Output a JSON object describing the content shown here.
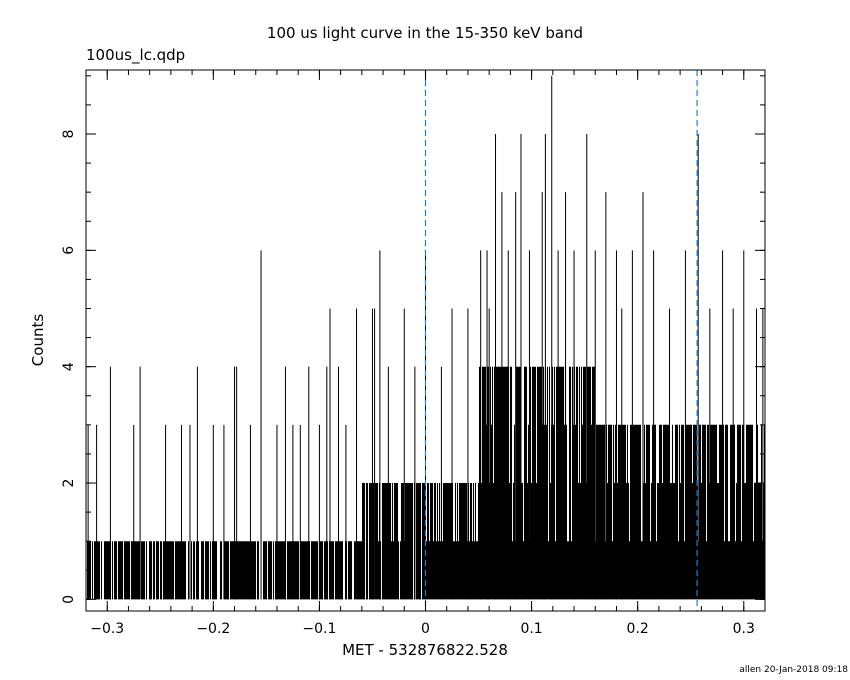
{
  "chart_data": {
    "type": "bar",
    "title": "100 us light curve in the 15-350 keV band",
    "subtitle": "100us_lc.qdp",
    "xlabel": "MET - 532876822.528",
    "ylabel": "Counts",
    "xlim": [
      -0.32,
      0.32
    ],
    "ylim": [
      -0.2,
      9.1
    ],
    "xticks": [
      -0.3,
      -0.2,
      -0.1,
      0,
      0.1,
      0.2,
      0.3
    ],
    "xtick_labels": [
      "−0.3",
      "−0.2",
      "−0.1",
      "0",
      "0.1",
      "0.2",
      "0.3"
    ],
    "yticks": [
      0,
      2,
      4,
      6,
      8
    ],
    "ytick_labels": [
      "0",
      "2",
      "4",
      "6",
      "8"
    ],
    "bin_width": 0.0001,
    "vertical_markers": [
      0,
      0.256
    ],
    "marker_color": "#1f7fd0",
    "bar_color": "#000000",
    "segments": [
      {
        "x_start": -0.32,
        "x_end": -0.06,
        "typical_min": 0,
        "typical_max": 1
      },
      {
        "x_start": -0.06,
        "x_end": 0.0,
        "typical_min": 0,
        "typical_max": 2
      },
      {
        "x_start": 0.0,
        "x_end": 0.05,
        "typical_min": 1,
        "typical_max": 2
      },
      {
        "x_start": 0.05,
        "x_end": 0.16,
        "typical_min": 1,
        "typical_max": 4
      },
      {
        "x_start": 0.16,
        "x_end": 0.32,
        "typical_min": 1,
        "typical_max": 3
      }
    ],
    "spikes": [
      {
        "x": -0.318,
        "y": 3
      },
      {
        "x": -0.31,
        "y": 3
      },
      {
        "x": -0.297,
        "y": 4
      },
      {
        "x": -0.275,
        "y": 3
      },
      {
        "x": -0.269,
        "y": 4
      },
      {
        "x": -0.245,
        "y": 3
      },
      {
        "x": -0.23,
        "y": 3
      },
      {
        "x": -0.222,
        "y": 3
      },
      {
        "x": -0.215,
        "y": 4
      },
      {
        "x": -0.2,
        "y": 3
      },
      {
        "x": -0.19,
        "y": 3
      },
      {
        "x": -0.18,
        "y": 4
      },
      {
        "x": -0.178,
        "y": 4
      },
      {
        "x": -0.165,
        "y": 3
      },
      {
        "x": -0.155,
        "y": 6
      },
      {
        "x": -0.14,
        "y": 3
      },
      {
        "x": -0.132,
        "y": 4
      },
      {
        "x": -0.125,
        "y": 3
      },
      {
        "x": -0.118,
        "y": 3
      },
      {
        "x": -0.11,
        "y": 4
      },
      {
        "x": -0.1,
        "y": 3
      },
      {
        "x": -0.093,
        "y": 4
      },
      {
        "x": -0.09,
        "y": 5
      },
      {
        "x": -0.082,
        "y": 4
      },
      {
        "x": -0.075,
        "y": 3
      },
      {
        "x": -0.065,
        "y": 5
      },
      {
        "x": -0.05,
        "y": 5
      },
      {
        "x": -0.048,
        "y": 5
      },
      {
        "x": -0.043,
        "y": 6
      },
      {
        "x": -0.035,
        "y": 4
      },
      {
        "x": -0.02,
        "y": 5
      },
      {
        "x": -0.01,
        "y": 4
      },
      {
        "x": 0.0,
        "y": 6
      },
      {
        "x": 0.015,
        "y": 4
      },
      {
        "x": 0.025,
        "y": 5
      },
      {
        "x": 0.04,
        "y": 5
      },
      {
        "x": 0.052,
        "y": 6
      },
      {
        "x": 0.058,
        "y": 6
      },
      {
        "x": 0.06,
        "y": 5
      },
      {
        "x": 0.066,
        "y": 8
      },
      {
        "x": 0.072,
        "y": 7
      },
      {
        "x": 0.078,
        "y": 6
      },
      {
        "x": 0.085,
        "y": 7
      },
      {
        "x": 0.09,
        "y": 8
      },
      {
        "x": 0.098,
        "y": 6
      },
      {
        "x": 0.11,
        "y": 7
      },
      {
        "x": 0.113,
        "y": 8
      },
      {
        "x": 0.119,
        "y": 9
      },
      {
        "x": 0.125,
        "y": 6
      },
      {
        "x": 0.132,
        "y": 7
      },
      {
        "x": 0.14,
        "y": 6
      },
      {
        "x": 0.152,
        "y": 8
      },
      {
        "x": 0.16,
        "y": 6
      },
      {
        "x": 0.17,
        "y": 7
      },
      {
        "x": 0.18,
        "y": 6
      },
      {
        "x": 0.185,
        "y": 5
      },
      {
        "x": 0.195,
        "y": 6
      },
      {
        "x": 0.205,
        "y": 7
      },
      {
        "x": 0.215,
        "y": 6
      },
      {
        "x": 0.23,
        "y": 5
      },
      {
        "x": 0.245,
        "y": 6
      },
      {
        "x": 0.257,
        "y": 8
      },
      {
        "x": 0.268,
        "y": 5
      },
      {
        "x": 0.28,
        "y": 6
      },
      {
        "x": 0.29,
        "y": 5
      },
      {
        "x": 0.3,
        "y": 6
      },
      {
        "x": 0.312,
        "y": 5
      },
      {
        "x": 0.318,
        "y": 5
      }
    ],
    "legend": "none",
    "grid": false
  },
  "footer": "allen 20-Jan-2018 09:18"
}
